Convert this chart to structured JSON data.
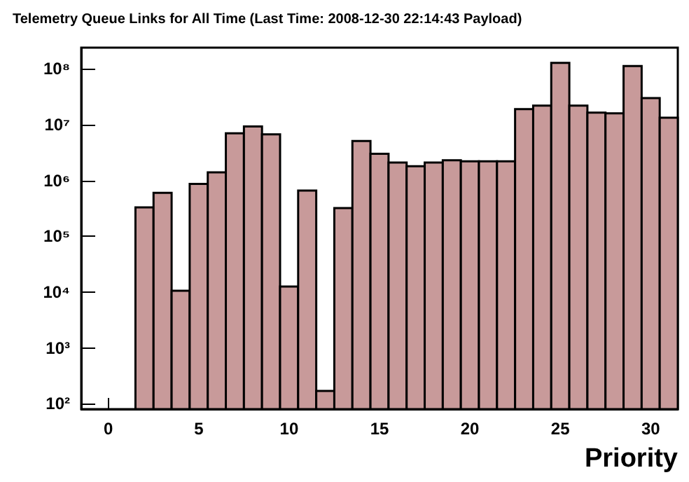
{
  "chart_data": {
    "type": "histogram",
    "title": "Telemetry Queue Links for All Time (Last Time: 2008-12-30 22:14:43 Payload)",
    "xlabel": "Priority",
    "bins": [
      1.5,
      2.5,
      3.5,
      4.5,
      5.5,
      6.5,
      7.5,
      8.5,
      9.5,
      10.5,
      11.5,
      12.5,
      13.5,
      14.5,
      15.5,
      16.5,
      17.5,
      18.5,
      19.5,
      20.5,
      21.5,
      22.5,
      23.5,
      24.5,
      25.5,
      26.5,
      27.5,
      28.5,
      29.5,
      30.5,
      31.5
    ],
    "values": [
      330000,
      600000,
      10600,
      870000,
      1400000,
      7000000,
      9300000,
      6700000,
      12600,
      660000,
      170,
      320000,
      5100000,
      3000000,
      2100000,
      1800000,
      2100000,
      2300000,
      2200000,
      2200000,
      2200000,
      19000000,
      22000000,
      128000000,
      22000000,
      16500000,
      16000000,
      112000000,
      30000000,
      13300000
    ],
    "color": "#c89a9a",
    "log": "y",
    "xlim": [
      -1.5,
      31.5
    ],
    "xticks": [
      0,
      5,
      10,
      15,
      20,
      25,
      30
    ],
    "ylim": [
      80,
      240000000
    ],
    "yticks": [
      {
        "value": 100,
        "label": "10²"
      },
      {
        "value": 1000,
        "label": "10³"
      },
      {
        "value": 10000,
        "label": "10⁴"
      },
      {
        "value": 100000,
        "label": "10⁵"
      },
      {
        "value": 1000000,
        "label": "10⁶"
      },
      {
        "value": 10000000,
        "label": "10⁷"
      },
      {
        "value": 100000000,
        "label": "10⁸"
      }
    ]
  }
}
